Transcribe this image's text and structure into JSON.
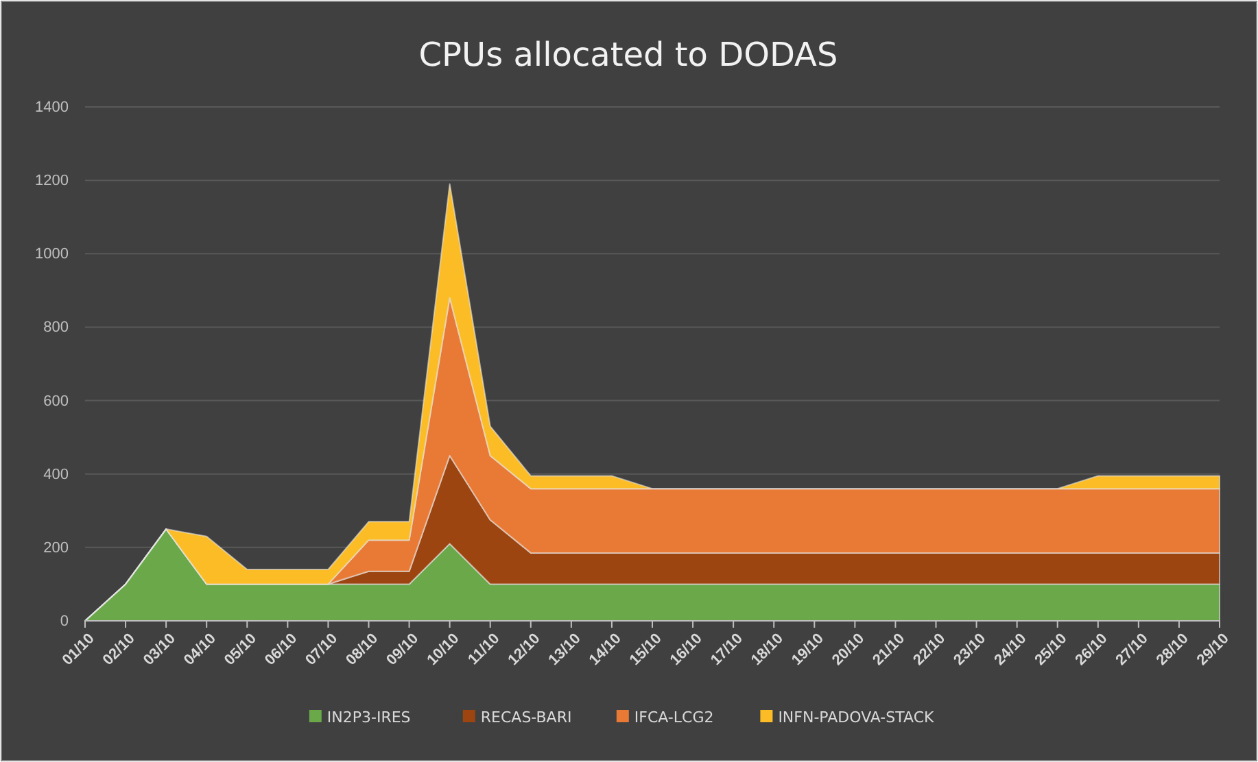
{
  "chart_data": {
    "type": "area",
    "stacked": true,
    "title": "CPUs allocated to DODAS",
    "categories": [
      "01/10",
      "02/10",
      "03/10",
      "04/10",
      "05/10",
      "06/10",
      "07/10",
      "08/10",
      "09/10",
      "10/10",
      "11/10",
      "12/10",
      "13/10",
      "14/10",
      "15/10",
      "16/10",
      "17/10",
      "18/10",
      "19/10",
      "20/10",
      "21/10",
      "22/10",
      "23/10",
      "24/10",
      "25/10",
      "26/10",
      "27/10",
      "28/10",
      "29/10"
    ],
    "series": [
      {
        "name": "IN2P3-IRES",
        "color": "#6aa84a",
        "values": [
          0,
          100,
          250,
          100,
          100,
          100,
          100,
          100,
          100,
          210,
          100,
          100,
          100,
          100,
          100,
          100,
          100,
          100,
          100,
          100,
          100,
          100,
          100,
          100,
          100,
          100,
          100,
          100,
          100
        ]
      },
      {
        "name": "RECAS-BARI",
        "color": "#9c4510",
        "values": [
          0,
          0,
          0,
          0,
          0,
          0,
          0,
          35,
          35,
          240,
          175,
          85,
          85,
          85,
          85,
          85,
          85,
          85,
          85,
          85,
          85,
          85,
          85,
          85,
          85,
          85,
          85,
          85,
          85
        ]
      },
      {
        "name": "IFCA-LCG2",
        "color": "#e97a35",
        "values": [
          0,
          0,
          0,
          0,
          0,
          0,
          0,
          85,
          85,
          430,
          175,
          175,
          175,
          175,
          175,
          175,
          175,
          175,
          175,
          175,
          175,
          175,
          175,
          175,
          175,
          175,
          175,
          175,
          175
        ]
      },
      {
        "name": "INFN-PADOVA-STACK",
        "color": "#fbbc26",
        "values": [
          0,
          0,
          0,
          130,
          40,
          40,
          40,
          50,
          50,
          310,
          80,
          35,
          35,
          35,
          0,
          0,
          0,
          0,
          0,
          0,
          0,
          0,
          0,
          0,
          0,
          35,
          35,
          35,
          35
        ]
      }
    ],
    "ylim": [
      0,
      1400
    ],
    "yticks": [
      0,
      200,
      400,
      600,
      800,
      1000,
      1200,
      1400
    ],
    "grid": "y",
    "legend": "bottom"
  }
}
